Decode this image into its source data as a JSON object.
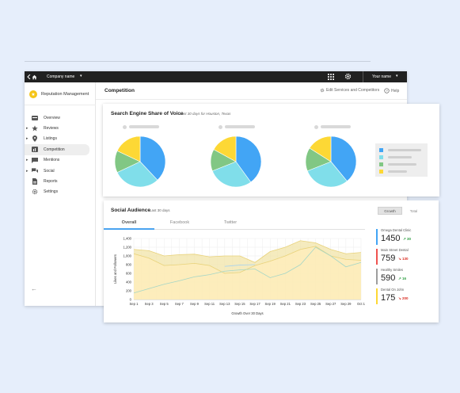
{
  "topbar": {
    "company": "Company name",
    "user": "Your name"
  },
  "sidebar": {
    "brand": "Reputation Management",
    "items": [
      {
        "label": "Overview",
        "icon": "overview-icon",
        "caret": false
      },
      {
        "label": "Reviews",
        "icon": "star-icon",
        "caret": true
      },
      {
        "label": "Listings",
        "icon": "pin-icon",
        "caret": true
      },
      {
        "label": "Competition",
        "icon": "competition-icon",
        "caret": false,
        "active": true
      },
      {
        "label": "Mentions",
        "icon": "chat-icon",
        "caret": true
      },
      {
        "label": "Social",
        "icon": "forum-icon",
        "caret": true
      },
      {
        "label": "Reports",
        "icon": "report-icon",
        "caret": false
      },
      {
        "label": "Settings",
        "icon": "settings-icon",
        "caret": false
      }
    ]
  },
  "main": {
    "title": "Competition",
    "edit_link": "Edit Services and Competitors",
    "help_link": "Help"
  },
  "share_of_voice": {
    "title": "Search Engine Share of Voice",
    "subtitle": "Last 30 days for Houston, Texas",
    "colors": [
      "#42a5f5",
      "#80deea",
      "#81c784",
      "#fdd835"
    ],
    "pies": [
      {
        "values": [
          38,
          30,
          14,
          18
        ]
      },
      {
        "values": [
          40,
          29,
          14,
          17
        ]
      },
      {
        "values": [
          39,
          30,
          15,
          16
        ]
      }
    ]
  },
  "social_audience": {
    "title": "Social Audience",
    "subtitle": "Last 30 days",
    "toggle": [
      "Growth",
      "Total"
    ],
    "tabs": [
      "Overall",
      "Facebook",
      "Twitter"
    ],
    "stats": [
      {
        "name": "Omega Dental Clinic",
        "value": "1450",
        "change": "30",
        "direction": "up",
        "color": "#42a5f5"
      },
      {
        "name": "Main Street Dental",
        "value": "759",
        "change": "130",
        "direction": "down",
        "color": "#ef5350"
      },
      {
        "name": "Healthy Smiles",
        "value": "590",
        "change": "16",
        "direction": "up",
        "color": "#9e9e9e"
      },
      {
        "name": "Dental On John",
        "value": "175",
        "change": "200",
        "direction": "down",
        "color": "#fdd835"
      }
    ]
  },
  "chart_data": {
    "type": "line",
    "xlabel": "Growth Over 30 Days",
    "ylabel": "Likes and Followers",
    "ylim": [
      0,
      1400
    ],
    "yticks": [
      0,
      200,
      400,
      600,
      800,
      1000,
      1200,
      1400
    ],
    "categories": [
      "Sep 1",
      "Sep 3",
      "Sep 5",
      "Sep 7",
      "Sep 9",
      "Sep 11",
      "Sep 13",
      "Sep 15",
      "Sep 17",
      "Sep 19",
      "Sep 21",
      "Sep 23",
      "Sep 25",
      "Sep 27",
      "Sep 29",
      "Oct 1"
    ],
    "series": [
      {
        "color": "#f2e4a8",
        "values": [
          1150,
          1120,
          1000,
          1030,
          1040,
          980,
          1000,
          1000,
          850,
          1100,
          1200,
          1350,
          1300,
          1150,
          1050,
          1080
        ],
        "fill": true
      },
      {
        "color": "#ffeebb",
        "values": [
          1050,
          950,
          780,
          800,
          830,
          780,
          600,
          620,
          780,
          880,
          1000,
          1150,
          1220,
          1000,
          920,
          900
        ],
        "fill": true
      },
      {
        "color": "#a5d6c7",
        "values": [
          150,
          250,
          350,
          430,
          520,
          570,
          650,
          680,
          700,
          500,
          600,
          800,
          1200,
          1000,
          750,
          850
        ],
        "fill": false
      },
      {
        "color": "#a9d4f0",
        "values": [
          null,
          null,
          null,
          null,
          null,
          null,
          760,
          790,
          800,
          null,
          null,
          null,
          null,
          null,
          null,
          null
        ],
        "fill": false
      }
    ]
  }
}
